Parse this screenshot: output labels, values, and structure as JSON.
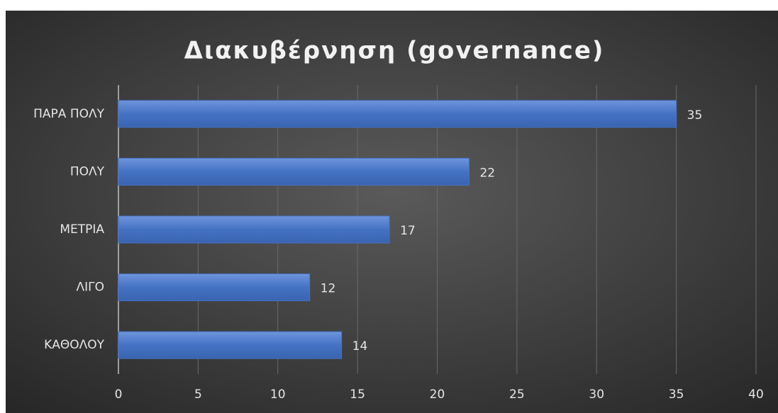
{
  "chart_data": {
    "type": "bar",
    "orientation": "horizontal",
    "title": "Διακυβέρνηση (governance)",
    "categories": [
      "ΠΑΡΑ ΠΟΛΥ",
      "ΠΟΛΥ",
      "ΜΕΤΡΙΑ",
      "ΛΙΓΟ",
      "ΚΑΘΟΛΟΥ"
    ],
    "values": [
      35,
      22,
      17,
      12,
      14
    ],
    "color": "#4472c4",
    "xlim": [
      0,
      40
    ],
    "xticks": [
      0,
      5,
      10,
      15,
      20,
      25,
      30,
      35,
      40
    ],
    "grid": true,
    "data_labels": true
  }
}
